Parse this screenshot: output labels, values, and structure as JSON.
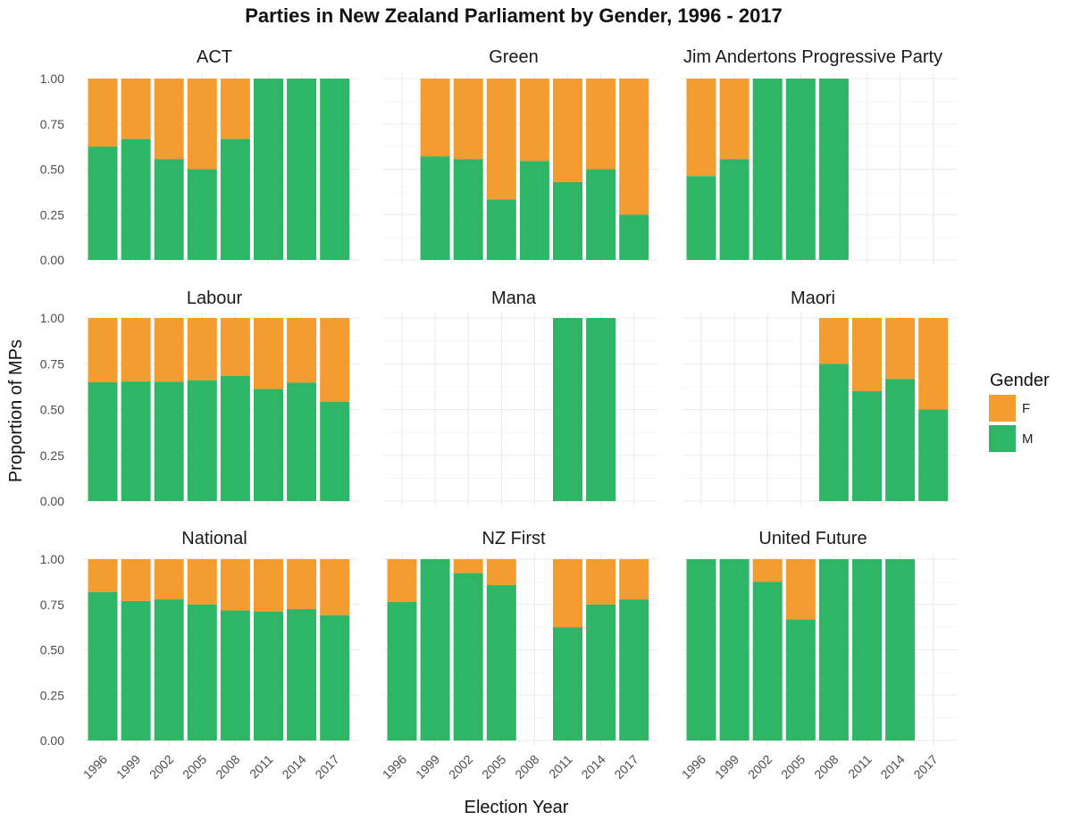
{
  "chart_data": {
    "type": "bar",
    "stacked": true,
    "faceted": true,
    "title": "Parties in New Zealand Parliament by Gender, 1996 - 2017",
    "xlabel": "Election Year",
    "ylabel": "Proportion of MPs",
    "ylim": [
      0,
      1
    ],
    "yticks": [
      "0.00",
      "0.25",
      "0.50",
      "0.75",
      "1.00"
    ],
    "categories": [
      "1996",
      "1999",
      "2002",
      "2005",
      "2008",
      "2011",
      "2014",
      "2017"
    ],
    "legend": {
      "title": "Gender",
      "position": "right",
      "entries": [
        {
          "label": "F",
          "color": "#F39C2F"
        },
        {
          "label": "M",
          "color": "#2FB566"
        }
      ]
    },
    "grid": true,
    "facets": [
      {
        "name": "ACT",
        "M": [
          0.625,
          0.667,
          0.556,
          0.5,
          0.667,
          1.0,
          1.0,
          1.0
        ]
      },
      {
        "name": "Green",
        "M": [
          null,
          0.571,
          0.556,
          0.333,
          0.545,
          0.429,
          0.5,
          0.25
        ]
      },
      {
        "name": "Jim Andertons Progressive Party",
        "M": [
          0.462,
          0.556,
          1.0,
          1.0,
          1.0,
          null,
          null,
          null
        ]
      },
      {
        "name": "Labour",
        "M": [
          0.649,
          0.653,
          0.652,
          0.66,
          0.683,
          0.612,
          0.647,
          0.543
        ]
      },
      {
        "name": "Mana",
        "M": [
          null,
          null,
          null,
          null,
          null,
          1.0,
          1.0,
          null
        ]
      },
      {
        "name": "Maori",
        "M": [
          null,
          null,
          null,
          null,
          0.75,
          0.6,
          0.667,
          0.5
        ]
      },
      {
        "name": "National",
        "M": [
          0.818,
          0.769,
          0.778,
          0.75,
          0.717,
          0.711,
          0.724,
          0.691
        ]
      },
      {
        "name": "NZ First",
        "M": [
          0.765,
          1.0,
          0.923,
          0.857,
          null,
          0.625,
          0.75,
          0.778
        ]
      },
      {
        "name": "United Future",
        "M": [
          1.0,
          1.0,
          0.875,
          0.667,
          1.0,
          1.0,
          1.0,
          null
        ]
      }
    ]
  }
}
